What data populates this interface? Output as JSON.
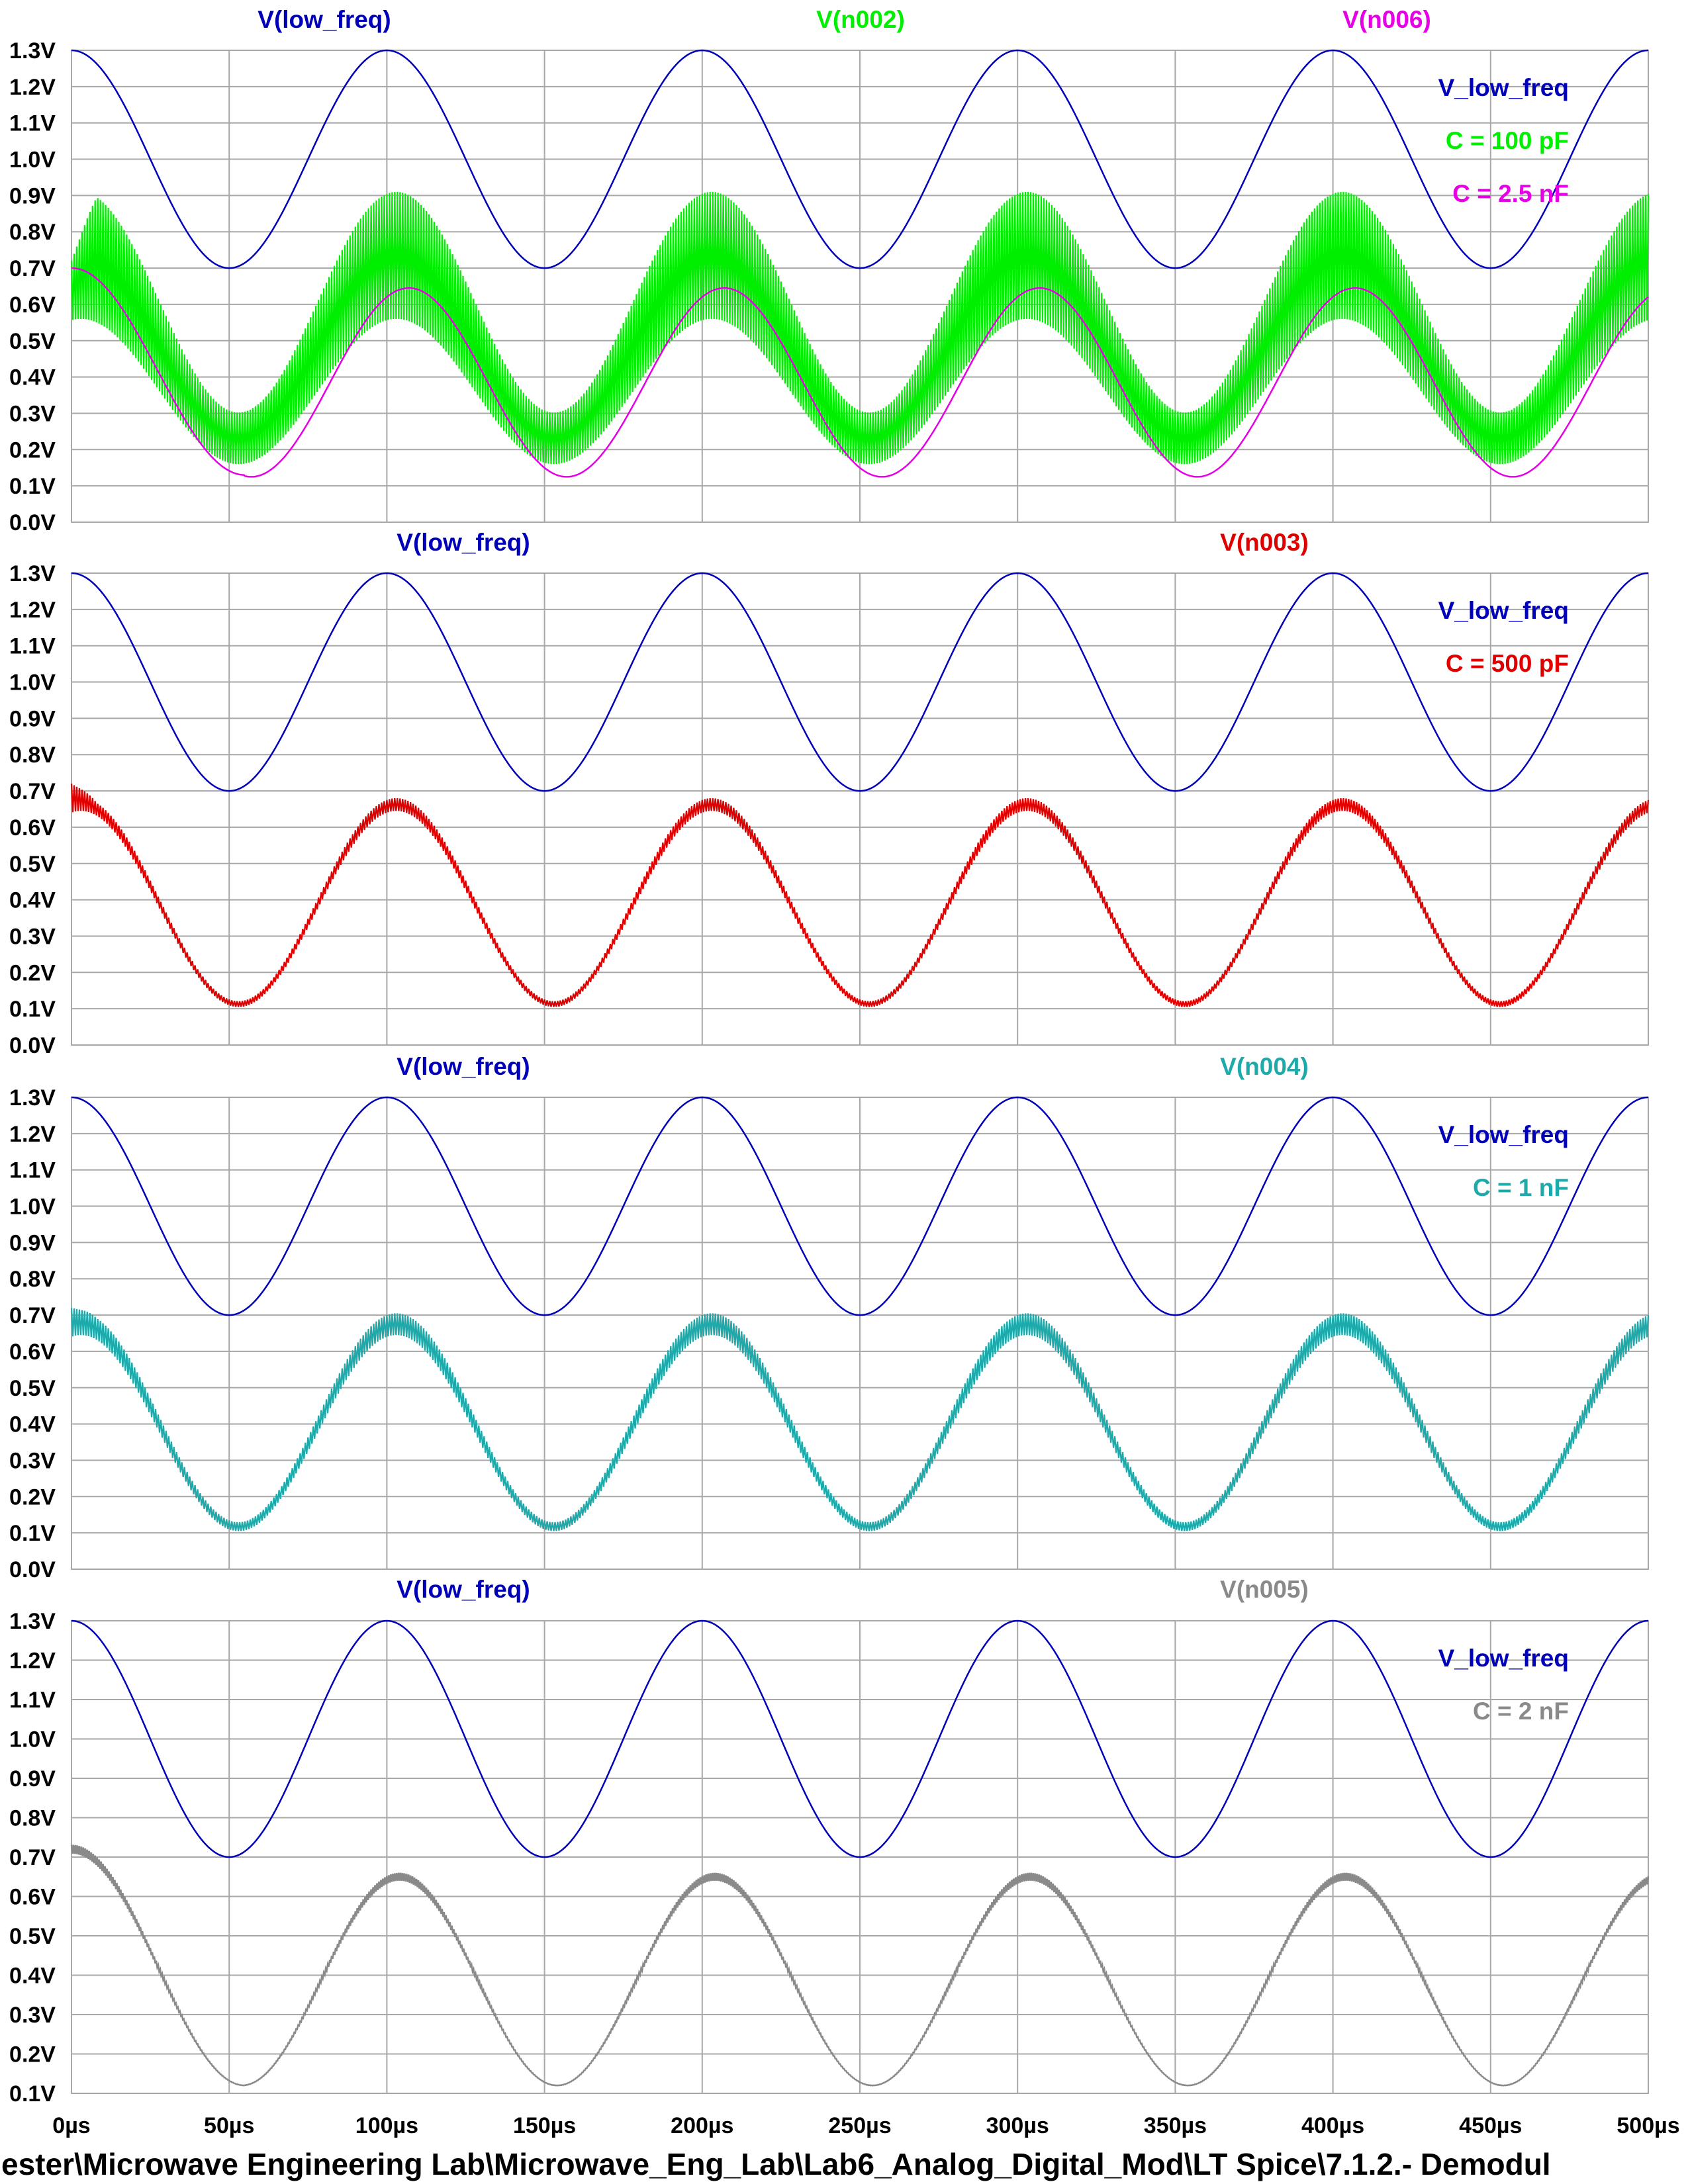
{
  "colors": {
    "low_freq": "#0000b8",
    "n002": "#00ee00",
    "n006": "#e600e6",
    "n003": "#e00000",
    "n004": "#1eaaaa",
    "n005": "#8a8a8a",
    "grid": "#a8a8a8"
  },
  "footer_path": "ester\\Microwave Engineering Lab\\Microwave_Eng_Lab\\Lab6_Analog_Digital_Mod\\LT Spice\\7.1.2.- Demodul",
  "chart_data": [
    {
      "type": "line",
      "xlim": [
        0,
        500
      ],
      "ylim": [
        0.0,
        1.3
      ],
      "x_ticks": [
        "0µs",
        "50µs",
        "100µs",
        "150µs",
        "200µs",
        "250µs",
        "300µs",
        "350µs",
        "400µs",
        "450µs",
        "500µs"
      ],
      "y_ticks": [
        "1.3V",
        "1.2V",
        "1.1V",
        "1.0V",
        "0.9V",
        "0.8V",
        "0.7V",
        "0.6V",
        "0.5V",
        "0.4V",
        "0.3V",
        "0.2V",
        "0.1V",
        "0.0V"
      ],
      "grid": true,
      "trace_labels": [
        {
          "text": "V(low_freq)",
          "color_key": "low_freq"
        },
        {
          "text": "V(n002)",
          "color_key": "n002"
        },
        {
          "text": "V(n006)",
          "color_key": "n006"
        }
      ],
      "legend": [
        {
          "text": "V_low_freq",
          "color_key": "low_freq"
        },
        {
          "text": "C = 100 pF",
          "color_key": "n002"
        },
        {
          "text": "C = 2.5 nF",
          "color_key": "n006"
        }
      ],
      "series": [
        {
          "key": "low_freq",
          "model": "sine",
          "mid": 1.0,
          "amp": 0.3,
          "period_us": 100,
          "peak_at_us": 0
        },
        {
          "key": "n002",
          "model": "ripple",
          "env_mid": 0.39,
          "env_amp": 0.2,
          "ripple_top": 0.32,
          "ripple_bottom": 0.03,
          "start_value": 0.72
        },
        {
          "key": "n006",
          "model": "lagged",
          "mid": 0.385,
          "amp": 0.26,
          "lag_us": 7,
          "start_value": 0.7,
          "first_min_value": 0.13
        }
      ]
    },
    {
      "type": "line",
      "xlim": [
        0,
        500
      ],
      "ylim": [
        0.0,
        1.3
      ],
      "x_ticks": [
        "0µs",
        "50µs",
        "100µs",
        "150µs",
        "200µs",
        "250µs",
        "300µs",
        "350µs",
        "400µs",
        "450µs",
        "500µs"
      ],
      "y_ticks": [
        "1.3V",
        "1.2V",
        "1.1V",
        "1.0V",
        "0.9V",
        "0.8V",
        "0.7V",
        "0.6V",
        "0.5V",
        "0.4V",
        "0.3V",
        "0.2V",
        "0.1V",
        "0.0V"
      ],
      "grid": true,
      "trace_labels": [
        {
          "text": "V(low_freq)",
          "color_key": "low_freq"
        },
        {
          "text": "V(n003)",
          "color_key": "n003"
        }
      ],
      "legend": [
        {
          "text": "V_low_freq",
          "color_key": "low_freq"
        },
        {
          "text": "C = 500 pF",
          "color_key": "n003"
        }
      ],
      "series": [
        {
          "key": "low_freq",
          "model": "sine",
          "mid": 1.0,
          "amp": 0.3,
          "period_us": 100,
          "peak_at_us": 0
        },
        {
          "key": "n003",
          "model": "ripple",
          "env_mid": 0.38,
          "env_amp": 0.27,
          "ripple_top": 0.03,
          "ripple_bottom": 0.005,
          "start_value": 0.72
        }
      ]
    },
    {
      "type": "line",
      "xlim": [
        0,
        500
      ],
      "ylim": [
        0.0,
        1.3
      ],
      "x_ticks": [
        "0µs",
        "50µs",
        "100µs",
        "150µs",
        "200µs",
        "250µs",
        "300µs",
        "350µs",
        "400µs",
        "450µs",
        "500µs"
      ],
      "y_ticks": [
        "1.3V",
        "1.2V",
        "1.1V",
        "1.0V",
        "0.9V",
        "0.8V",
        "0.7V",
        "0.6V",
        "0.5V",
        "0.4V",
        "0.3V",
        "0.2V",
        "0.1V",
        "0.0V"
      ],
      "grid": true,
      "trace_labels": [
        {
          "text": "V(low_freq)",
          "color_key": "low_freq"
        },
        {
          "text": "V(n004)",
          "color_key": "n004"
        }
      ],
      "legend": [
        {
          "text": "V_low_freq",
          "color_key": "low_freq"
        },
        {
          "text": "C = 1 nF",
          "color_key": "n004"
        }
      ],
      "series": [
        {
          "key": "low_freq",
          "model": "sine",
          "mid": 1.0,
          "amp": 0.3,
          "period_us": 100,
          "peak_at_us": 0
        },
        {
          "key": "n004",
          "model": "ripple",
          "env_mid": 0.38,
          "env_amp": 0.27,
          "ripple_top": 0.055,
          "ripple_bottom": 0.005,
          "start_value": 0.72
        }
      ]
    },
    {
      "type": "line",
      "xlim": [
        0,
        500
      ],
      "ylim": [
        0.1,
        1.3
      ],
      "x_ticks": [
        "0µs",
        "50µs",
        "100µs",
        "150µs",
        "200µs",
        "250µs",
        "300µs",
        "350µs",
        "400µs",
        "450µs",
        "500µs"
      ],
      "y_ticks": [
        "1.3V",
        "1.2V",
        "1.1V",
        "1.0V",
        "0.9V",
        "0.8V",
        "0.7V",
        "0.6V",
        "0.5V",
        "0.4V",
        "0.3V",
        "0.2V",
        "0.1V"
      ],
      "grid": true,
      "trace_labels": [
        {
          "text": "V(low_freq)",
          "color_key": "low_freq"
        },
        {
          "text": "V(n005)",
          "color_key": "n005"
        }
      ],
      "legend": [
        {
          "text": "V_low_freq",
          "color_key": "low_freq"
        },
        {
          "text": "C = 2 nF",
          "color_key": "n005"
        }
      ],
      "series": [
        {
          "key": "low_freq",
          "model": "sine",
          "mid": 1.0,
          "amp": 0.3,
          "period_us": 100,
          "peak_at_us": 0
        },
        {
          "key": "n005",
          "model": "lagged",
          "mid": 0.385,
          "amp": 0.265,
          "lag_us": 4,
          "start_value": 0.72,
          "first_min_value": 0.12,
          "ripple": 0.01
        }
      ]
    }
  ]
}
